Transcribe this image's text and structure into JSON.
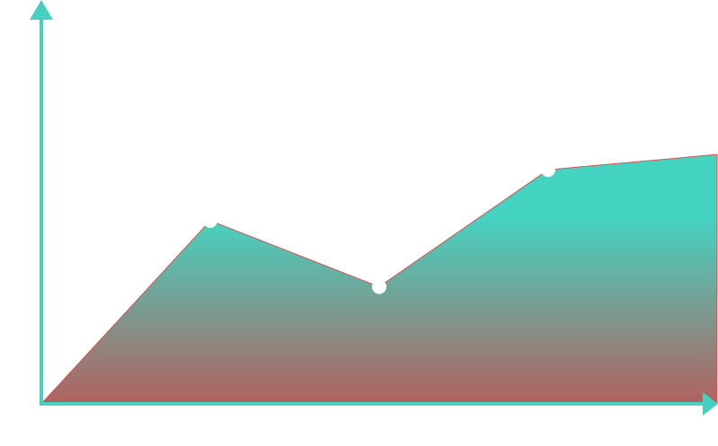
{
  "chart_data": {
    "type": "area",
    "title": "",
    "xlabel": "",
    "ylabel": "",
    "x": [
      0,
      1,
      2,
      3,
      4
    ],
    "values": [
      0,
      3.6,
      2.3,
      4.6,
      4.9
    ],
    "markers": [
      false,
      true,
      true,
      true,
      false
    ],
    "xlim": [
      0,
      4
    ],
    "ylim": [
      0,
      8
    ],
    "grid": false,
    "legend": "none"
  },
  "colors": {
    "axis": "#45d0c0",
    "fill_top": "#45d3c1",
    "fill_bottom": "#b0625f",
    "line": "#d9534f",
    "marker": "#ffffff"
  }
}
